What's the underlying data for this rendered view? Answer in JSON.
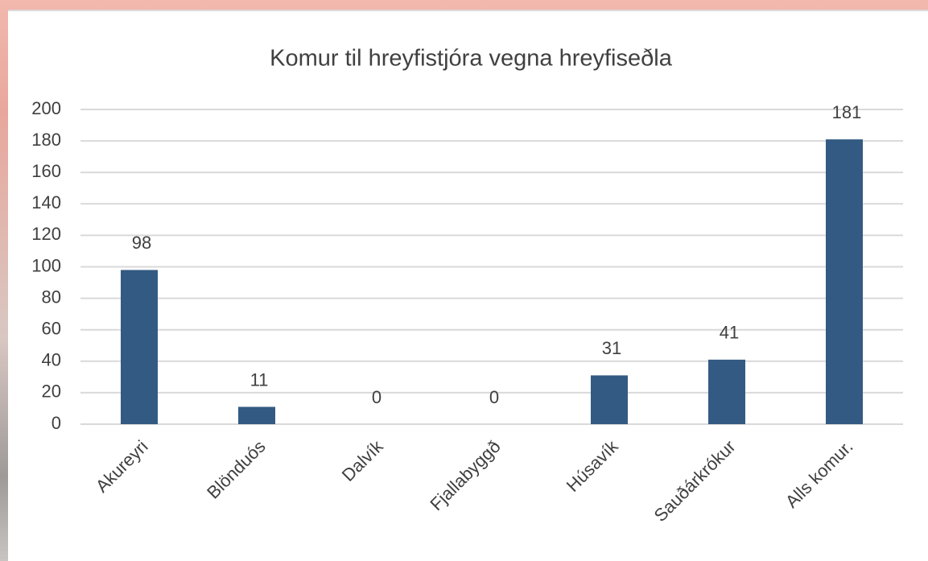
{
  "chart_data": {
    "type": "bar",
    "title": "Komur til hreyfistjóra vegna hreyfiseðla",
    "categories": [
      "Akureyri",
      "Blönduós",
      "Dalvík",
      "Fjallabyggð",
      "Húsavík",
      "Sauðárkrókur",
      "Alls komur."
    ],
    "values": [
      98,
      11,
      0,
      0,
      31,
      41,
      181
    ],
    "color": "#335a82",
    "ylim": [
      0,
      200
    ],
    "yticks": [
      0,
      20,
      40,
      60,
      80,
      100,
      120,
      140,
      160,
      180,
      200
    ],
    "grid": true,
    "data_labels": true
  }
}
